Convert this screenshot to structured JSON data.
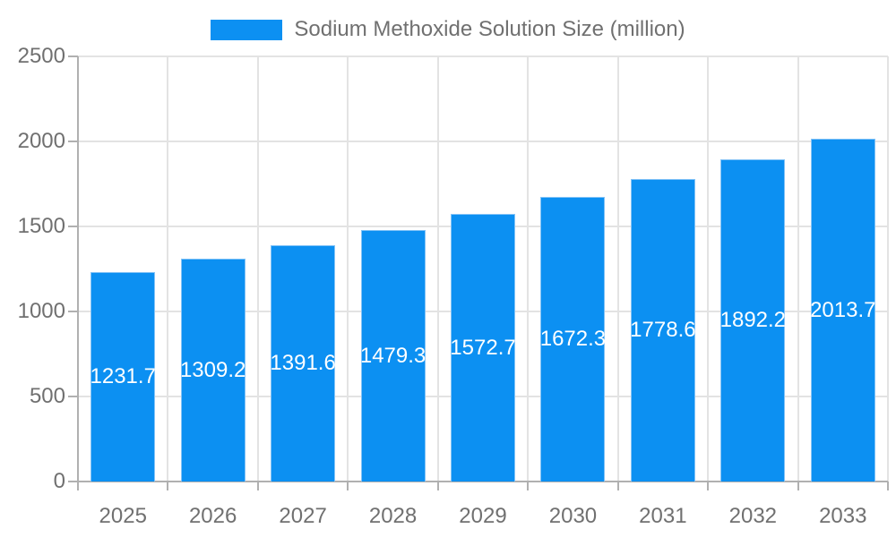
{
  "legend": {
    "label": "Sodium Methoxide Solution Size (million)"
  },
  "chart_data": {
    "type": "bar",
    "title": "Sodium Methoxide Solution Size (million)",
    "series_name": "Sodium Methoxide Solution Size (million)",
    "categories": [
      "2025",
      "2026",
      "2027",
      "2028",
      "2029",
      "2030",
      "2031",
      "2032",
      "2033"
    ],
    "values": [
      1231.7,
      1309.2,
      1391.6,
      1479.3,
      1572.7,
      1672.3,
      1778.6,
      1892.2,
      2013.7
    ],
    "value_labels_visible": true,
    "value_label_position": "inside-center",
    "xlabel": "",
    "ylabel": "",
    "ylim": [
      0,
      2500
    ],
    "yticks": [
      0,
      500,
      1000,
      1500,
      2000,
      2500
    ],
    "grid": true,
    "legend_position": "top-center"
  },
  "colors": {
    "bar": "#0C90F2",
    "bar_border": "#83C3F7",
    "grid": "#E3E3E3",
    "axis": "#B0B0B0",
    "axis_text": "#707070",
    "legend_text": "#707070",
    "value_text": "#FFFFFF",
    "background": "#FFFFFF"
  }
}
